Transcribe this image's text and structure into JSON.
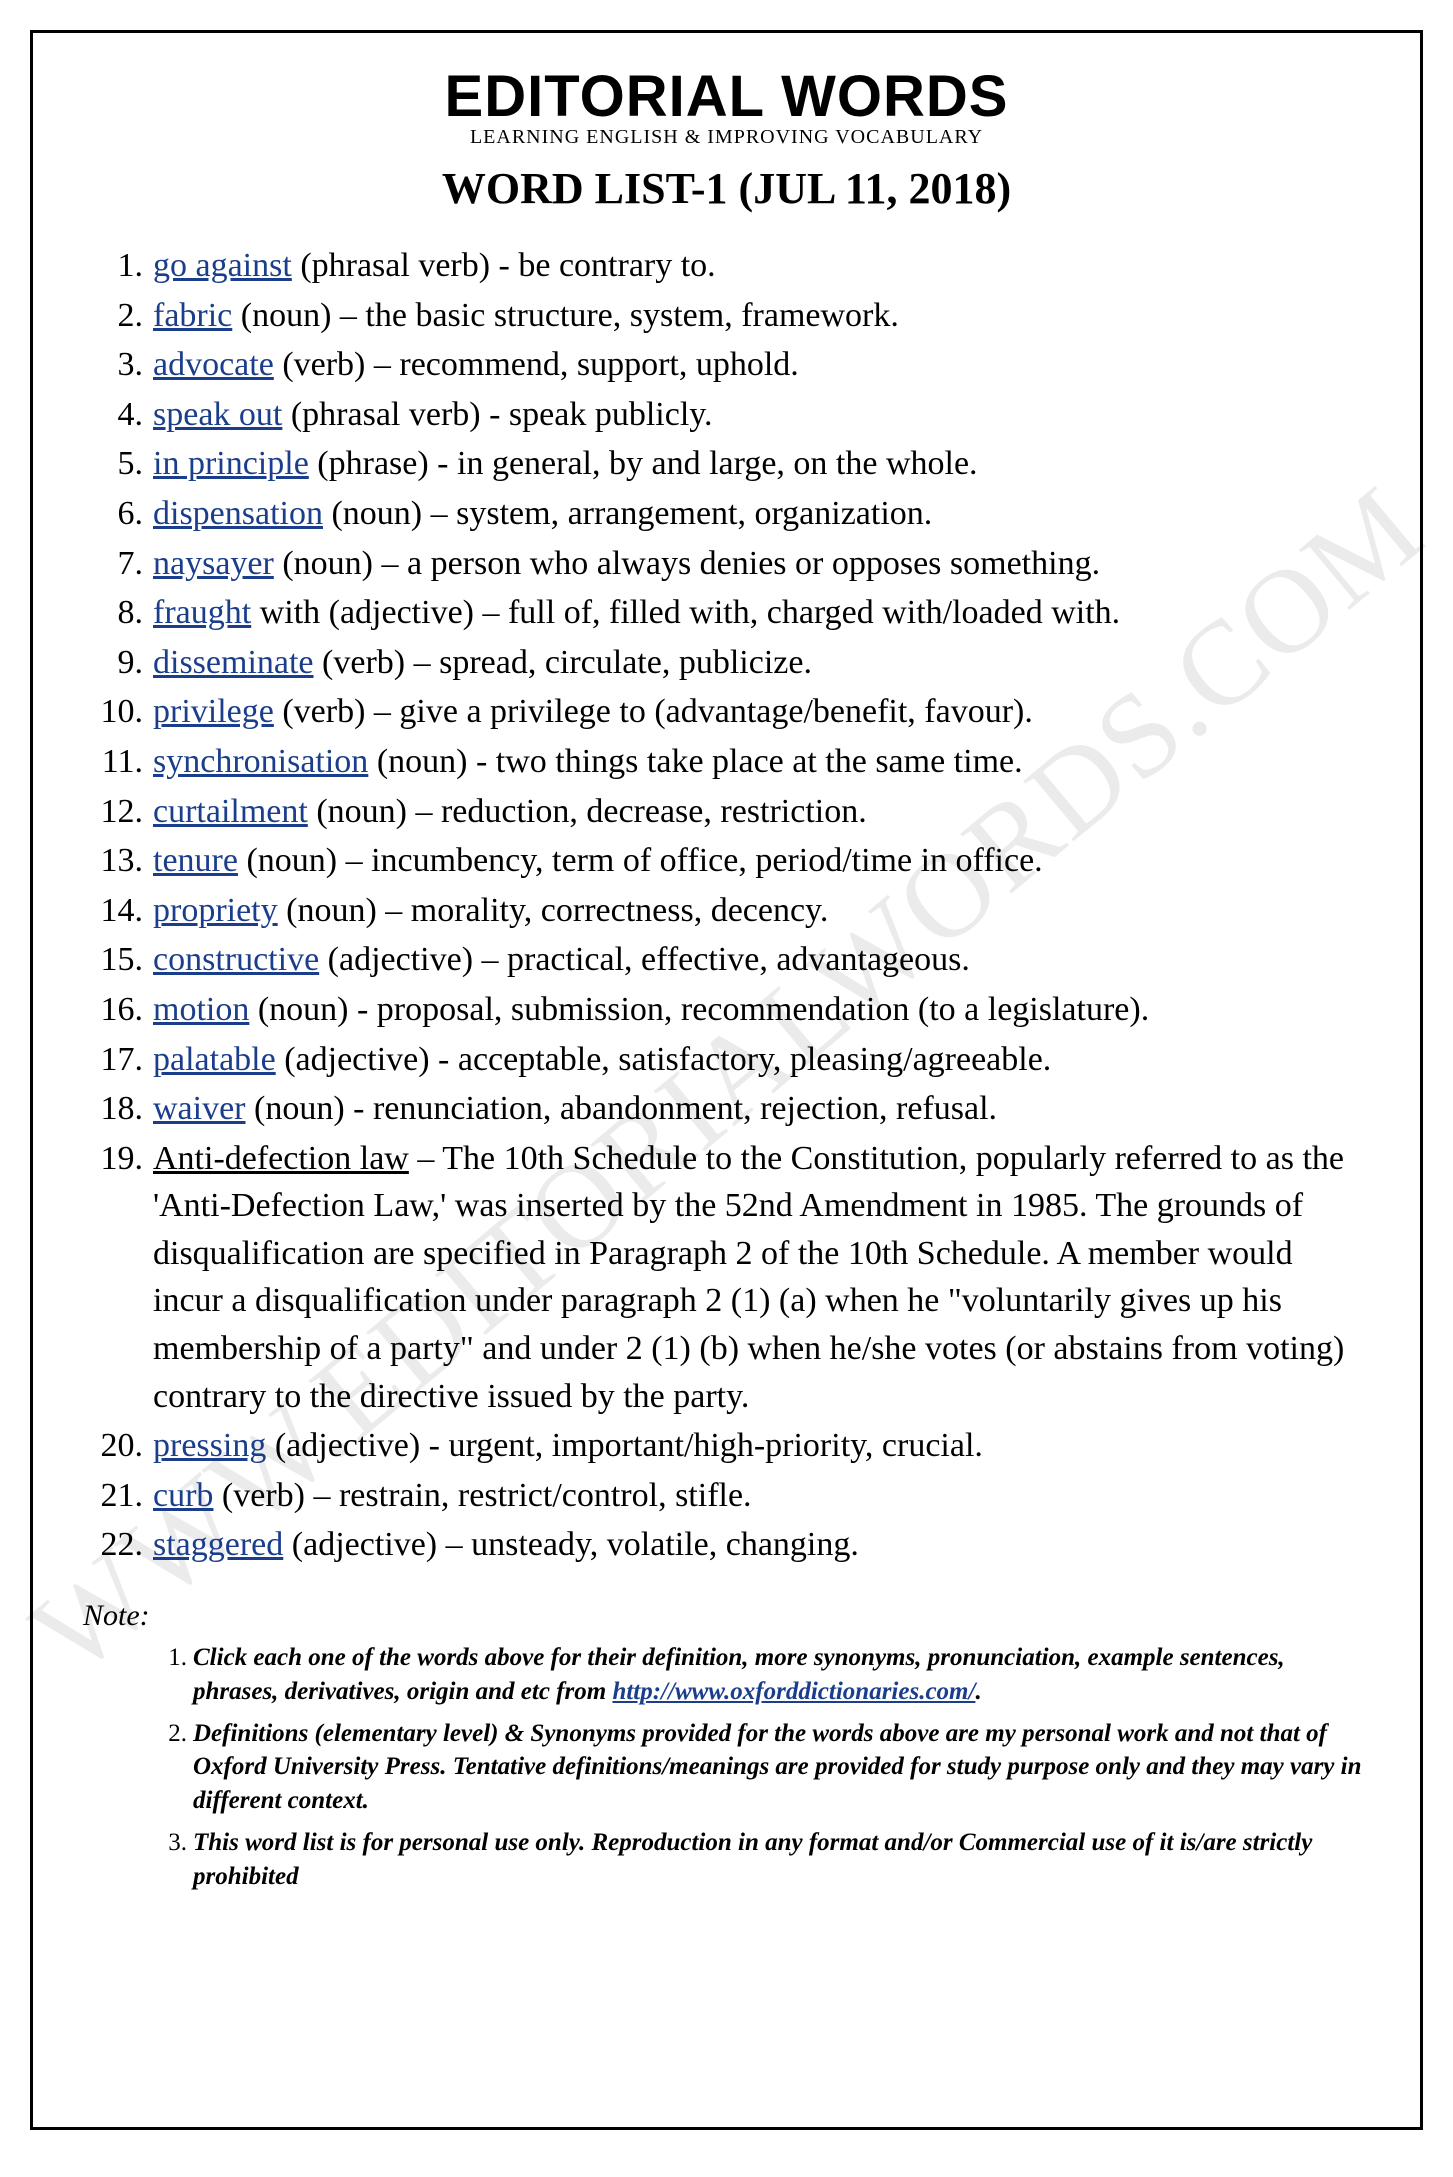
{
  "watermark": "WWW.EDITORIALWORDS.COM",
  "header": {
    "brand": "EDITORIAL WORDS",
    "subtitle": "LEARNING ENGLISH & IMPROVING VOCABULARY",
    "list_title": "WORD LIST-1 (JUL 11, 2018)"
  },
  "words": [
    {
      "term": "go against",
      "link": true,
      "pos": "(phrasal verb)",
      "sep": " - ",
      "def": "be contrary to."
    },
    {
      "term": "fabric",
      "link": true,
      "pos": "(noun)",
      "sep": " – ",
      "def": "the basic structure, system, framework."
    },
    {
      "term": "advocate",
      "link": true,
      "pos": "(verb)",
      "sep": " – ",
      "def": "recommend, support, uphold."
    },
    {
      "term": "speak out",
      "link": true,
      "pos": "(phrasal verb)",
      "sep": " - ",
      "def": "speak publicly."
    },
    {
      "term": "in principle",
      "link": true,
      "pos": "(phrase)",
      "sep": " - ",
      "def": "in general, by and large, on the whole."
    },
    {
      "term": "dispensation",
      "link": true,
      "pos": "(noun)",
      "sep": " – ",
      "def": "system, arrangement, organization."
    },
    {
      "term": "naysayer",
      "link": true,
      "pos": "(noun)",
      "sep": " – ",
      "def": "a person who always denies or opposes something."
    },
    {
      "term": "fraught",
      "link": true,
      "extra": " with",
      "pos": "(adjective)",
      "sep": " – ",
      "def": "full of,  filled with, charged with/loaded with."
    },
    {
      "term": "disseminate",
      "link": true,
      "pos": "(verb)",
      "sep": " – ",
      "def": "spread, circulate, publicize."
    },
    {
      "term": "privilege",
      "link": true,
      "pos": "(verb)",
      "sep": " –  ",
      "def": "give a privilege to (advantage/benefit, favour)."
    },
    {
      "term": "synchronisation",
      "link": true,
      "pos": "(noun)",
      "sep": " - ",
      "def": "two things take place at the same time."
    },
    {
      "term": "curtailment",
      "link": true,
      "pos": "(noun)",
      "sep": " – ",
      "def": "reduction, decrease, restriction."
    },
    {
      "term": "tenure",
      "link": true,
      "pos": "(noun)",
      "sep": " – ",
      "def": "incumbency, term of office, period/time in office."
    },
    {
      "term": "propriety",
      "link": true,
      "pos": "(noun)",
      "sep": " – ",
      "def": "morality, correctness, decency."
    },
    {
      "term": "constructive",
      "link": true,
      "pos": "(adjective)",
      "sep": " – ",
      "def": "practical, effective, advantageous."
    },
    {
      "term": "motion",
      "link": true,
      "pos": "(noun)",
      "sep": " - ",
      "def": "proposal, submission, recommendation (to a legislature)."
    },
    {
      "term": "palatable",
      "link": true,
      "pos": "(adjective)",
      "sep": " - ",
      "def": "acceptable, satisfactory, pleasing/agreeable."
    },
    {
      "term": "waiver",
      "link": true,
      "pos": "(noun)",
      "sep": " - ",
      "def": "renunciation, abandonment, rejection, refusal."
    },
    {
      "term": "Anti-defection law",
      "link": false,
      "pos": "",
      "sep": " – ",
      "def": "The 10th Schedule to the Constitution, popularly referred to as the 'Anti-Defection Law,' was inserted by the 52nd Amendment in 1985. The grounds of disqualification are specified in Paragraph 2 of the 10th Schedule. A member would incur a disqualification under paragraph 2 (1) (a) when he \"voluntarily gives up his membership of a party\" and under 2 (1) (b) when he/she votes (or abstains from voting) contrary to the directive issued by the party."
    },
    {
      "term": "pressing",
      "link": true,
      "pos": "(adjective)",
      "sep": " - ",
      "def": "urgent, important/high-priority, crucial."
    },
    {
      "term": "curb",
      "link": true,
      "pos": "(verb)",
      "sep": " – ",
      "def": "restrain, restrict/control, stifle."
    },
    {
      "term": "staggered",
      "link": true,
      "pos": "(adjective)",
      "sep": " – ",
      "def": "unsteady, volatile, changing."
    }
  ],
  "notes": {
    "heading": "Note:",
    "items": [
      {
        "pre": "Click each one of the words above for their definition, more synonyms, pronunciation, example sentences, phrases, derivatives, origin and etc from ",
        "url": "http://www.oxforddictionaries.com/",
        "post": "."
      },
      {
        "pre": "Definitions (elementary level) & Synonyms provided for the words above are my personal work and not that of Oxford University Press. Tentative definitions/meanings are provided for study purpose only and they may vary in different context.",
        "url": "",
        "post": ""
      },
      {
        "pre": "This word list is for personal use only. Reproduction in any format and/or Commercial use of it is/are strictly prohibited",
        "url": "",
        "post": ""
      }
    ]
  }
}
